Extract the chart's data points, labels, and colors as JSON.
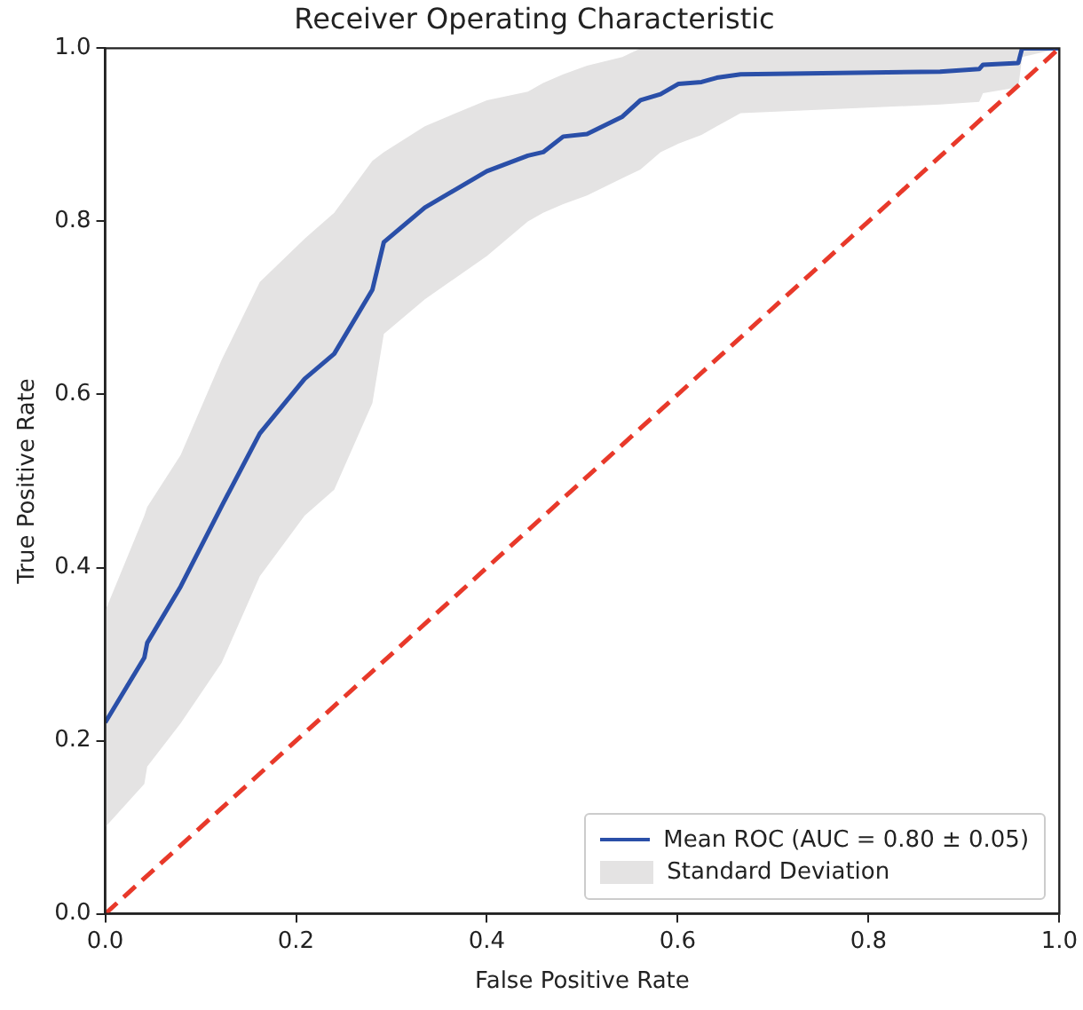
{
  "chart_data": {
    "type": "line",
    "title": "Receiver Operating Characteristic",
    "xlabel": "False Positive Rate",
    "ylabel": "True Positive Rate",
    "xlim": [
      0,
      1
    ],
    "ylim": [
      0,
      1
    ],
    "xticks": [
      {
        "value": 0,
        "label": "0.0"
      },
      {
        "value": 0.2,
        "label": "0.2"
      },
      {
        "value": 0.4,
        "label": "0.4"
      },
      {
        "value": 0.6,
        "label": "0.6"
      },
      {
        "value": 0.8,
        "label": "0.8"
      },
      {
        "value": 1,
        "label": "1.0"
      }
    ],
    "yticks": [
      {
        "value": 0,
        "label": "0.0"
      },
      {
        "value": 0.2,
        "label": "0.2"
      },
      {
        "value": 0.4,
        "label": "0.4"
      },
      {
        "value": 0.6,
        "label": "0.6"
      },
      {
        "value": 0.8,
        "label": "0.8"
      },
      {
        "value": 1,
        "label": "1.0"
      }
    ],
    "grid": false,
    "legend": "bottom right",
    "marker": "none",
    "annotations": [
      "Standard Deviation"
    ],
    "series": [
      {
        "name": "Mean ROC (AUC = 0.80 ± 0.05)",
        "color": "#2a4fa8",
        "line_style": "solid",
        "x": [
          0,
          0.041,
          0.044,
          0.079,
          0.122,
          0.162,
          0.209,
          0.24,
          0.28,
          0.292,
          0.335,
          0.4,
          0.443,
          0.459,
          0.48,
          0.505,
          0.542,
          0.561,
          0.582,
          0.601,
          0.625,
          0.641,
          0.666,
          0.875,
          0.916,
          0.92,
          0.957,
          0.961,
          1
        ],
        "values": [
          0.221,
          0.296,
          0.313,
          0.378,
          0.471,
          0.555,
          0.618,
          0.647,
          0.721,
          0.776,
          0.816,
          0.858,
          0.876,
          0.88,
          0.898,
          0.901,
          0.921,
          0.94,
          0.947,
          0.959,
          0.961,
          0.966,
          0.97,
          0.973,
          0.976,
          0.981,
          0.983,
          1,
          1
        ],
        "lower": [
          0.1,
          0.15,
          0.17,
          0.22,
          0.29,
          0.39,
          0.46,
          0.49,
          0.59,
          0.67,
          0.71,
          0.76,
          0.8,
          0.81,
          0.82,
          0.83,
          0.85,
          0.86,
          0.88,
          0.89,
          0.9,
          0.91,
          0.925,
          0.935,
          0.938,
          0.948,
          0.955,
          0.99,
          1
        ],
        "upper": [
          0.35,
          0.46,
          0.47,
          0.53,
          0.64,
          0.73,
          0.78,
          0.81,
          0.87,
          0.88,
          0.91,
          0.94,
          0.95,
          0.96,
          0.97,
          0.98,
          0.99,
          1,
          1,
          1,
          1,
          1,
          1,
          1,
          1,
          1,
          1,
          1,
          1
        ]
      },
      {
        "type": "line",
        "color": "#e8392a",
        "line_style": "dashed",
        "x": [
          0,
          1
        ],
        "values": [
          0,
          1
        ]
      }
    ]
  }
}
